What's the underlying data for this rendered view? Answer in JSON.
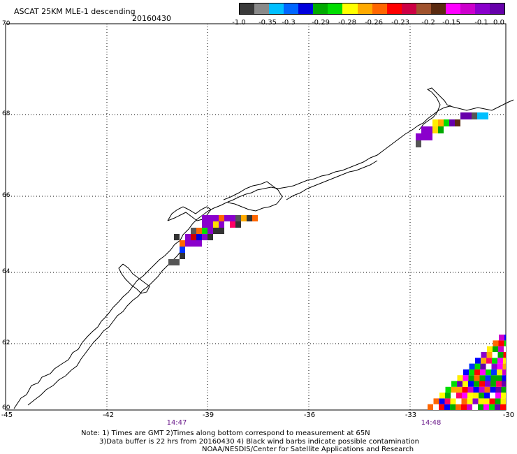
{
  "title": "ASCAT 25KM MLE-1 descending",
  "date": "20160430",
  "colorbar": {
    "colors": [
      "#3a3a3a",
      "#8a8a8a",
      "#00bfff",
      "#0066ff",
      "#0000dd",
      "#00aa00",
      "#00dd00",
      "#ffff00",
      "#ffaa00",
      "#ff6600",
      "#ff0000",
      "#cc0044",
      "#a0522d",
      "#5a2a10",
      "#ff00ff",
      "#cc00cc",
      "#8a00cc",
      "#6600aa"
    ],
    "labels": [
      "-1.0",
      "-0.35",
      "-0.3",
      "-0.29",
      "-0.28",
      "-0.26",
      "-0.23",
      "-0.2",
      "-0.15",
      "-0.1",
      "0.0"
    ]
  },
  "axes": {
    "lat_labels": [
      "70",
      "68",
      "66",
      "64",
      "62",
      "60"
    ],
    "lon_labels": [
      "-45",
      "-42",
      "-39",
      "-36",
      "-33",
      "-30"
    ]
  },
  "times": [
    "14:47",
    "14:48"
  ],
  "notes": {
    "line1": "Note: 1) Times are GMT 2)Times along bottom correspond to measurement at 65N",
    "line2": "3)Data buffer is 22 hrs from 20160430 4) Black wind barbs indicate possible contamination",
    "line3": "NOAA/NESDIS/Center for Satellite Applications and Research"
  }
}
